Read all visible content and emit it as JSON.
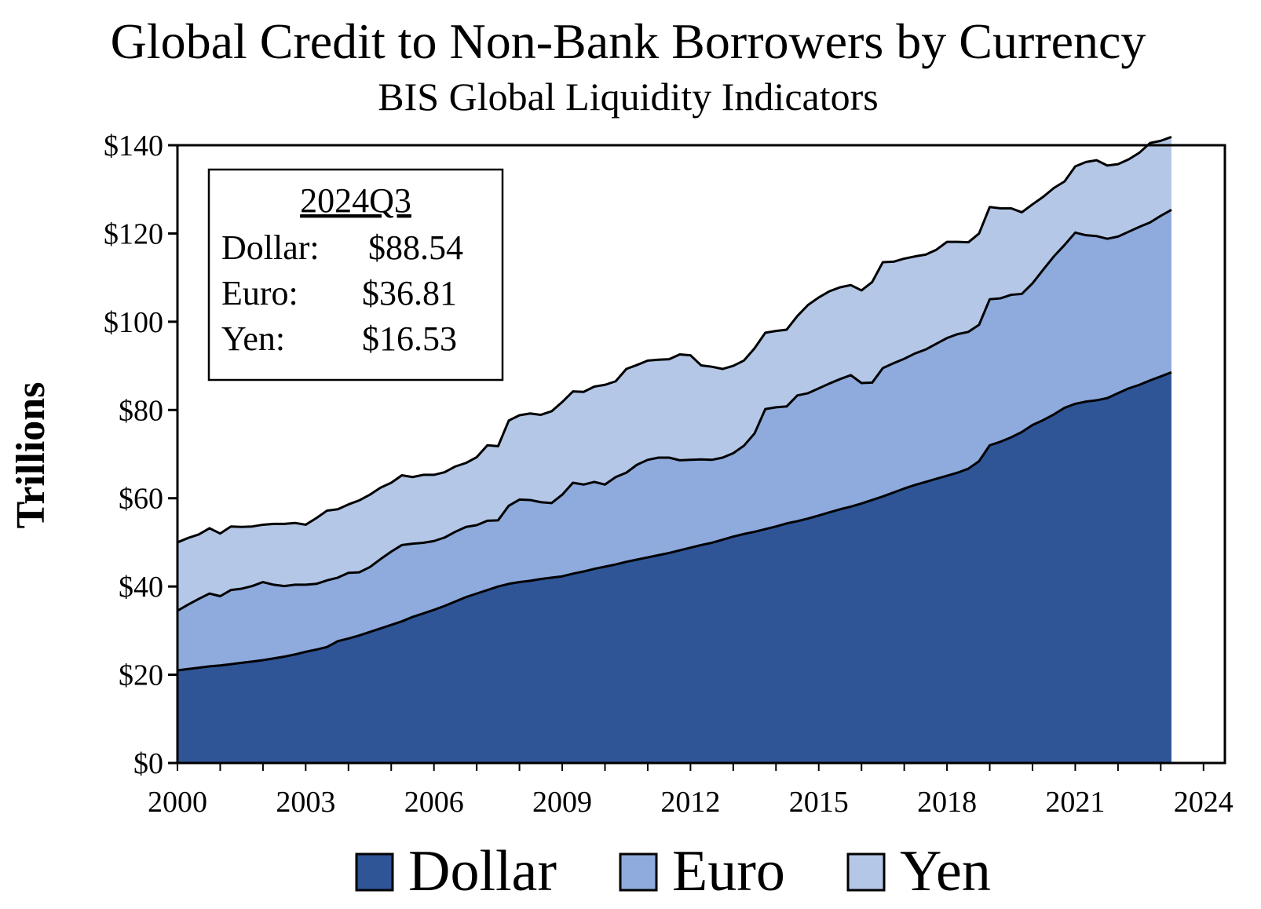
{
  "chart_data": {
    "type": "area",
    "stacked": true,
    "title": "Global Credit to Non-Bank Borrowers by Currency",
    "subtitle": "BIS Global Liquidity Indicators",
    "ylabel": "Trillions",
    "xlabel": "",
    "x_start": 2000.0,
    "x_step": 0.25,
    "xlim": [
      2000,
      2024.5
    ],
    "ylim": [
      0,
      140
    ],
    "x_ticks": [
      "2000",
      "2003",
      "2006",
      "2009",
      "2012",
      "2015",
      "2018",
      "2021",
      "2024"
    ],
    "y_ticks": [
      "$0",
      "$20",
      "$40",
      "$60",
      "$80",
      "$100",
      "$120",
      "$140"
    ],
    "series": [
      {
        "name": "Dollar",
        "color": "#2f5597",
        "values": [
          21.0,
          21.3,
          21.6,
          21.9,
          22.1,
          22.4,
          22.7,
          23.0,
          23.3,
          23.7,
          24.1,
          24.6,
          25.2,
          25.7,
          26.3,
          27.6,
          28.2,
          28.9,
          29.7,
          30.5,
          31.3,
          32.1,
          33.1,
          33.9,
          34.7,
          35.6,
          36.6,
          37.6,
          38.4,
          39.2,
          40.0,
          40.6,
          41.0,
          41.3,
          41.7,
          42.0,
          42.3,
          42.9,
          43.4,
          44.0,
          44.5,
          45.0,
          45.6,
          46.1,
          46.6,
          47.1,
          47.6,
          48.2,
          48.8,
          49.4,
          49.9,
          50.6,
          51.3,
          51.9,
          52.4,
          53.0,
          53.6,
          54.3,
          54.8,
          55.4,
          56.1,
          56.8,
          57.5,
          58.1,
          58.8,
          59.6,
          60.4,
          61.3,
          62.2,
          63.0,
          63.7,
          64.4,
          65.1,
          65.8,
          66.7,
          68.4,
          72.0,
          72.8,
          73.8,
          75.0,
          76.6,
          77.7,
          79.0,
          80.5,
          81.4,
          81.9,
          82.2,
          82.7,
          83.8,
          84.9,
          85.7,
          86.7,
          87.6,
          88.54
        ]
      },
      {
        "name": "Euro",
        "color": "#8faadc",
        "values": [
          13.5,
          14.6,
          15.6,
          16.5,
          15.7,
          16.8,
          16.8,
          17.1,
          17.7,
          16.7,
          16.0,
          15.8,
          15.2,
          14.9,
          15.1,
          14.4,
          14.9,
          14.3,
          14.7,
          15.7,
          16.6,
          17.3,
          16.6,
          16.0,
          15.6,
          15.5,
          15.8,
          15.9,
          15.5,
          15.7,
          15.0,
          17.7,
          18.7,
          18.3,
          17.4,
          16.9,
          18.5,
          20.6,
          19.7,
          19.7,
          18.6,
          19.8,
          20.2,
          21.5,
          22.1,
          22.1,
          21.6,
          20.4,
          19.9,
          19.4,
          18.8,
          18.6,
          18.9,
          20.0,
          22.3,
          27.2,
          27.0,
          26.5,
          28.5,
          28.4,
          28.8,
          29.2,
          29.5,
          29.8,
          27.3,
          26.6,
          29.1,
          29.3,
          29.4,
          29.8,
          30.0,
          30.6,
          31.2,
          31.4,
          31.0,
          30.9,
          33.1,
          32.5,
          32.3,
          31.3,
          32.1,
          34.1,
          35.8,
          36.9,
          38.8,
          37.7,
          37.2,
          36.1,
          35.5,
          35.5,
          35.8,
          35.8,
          36.4,
          36.81
        ]
      },
      {
        "name": "Yen",
        "color": "#b4c7e7",
        "values": [
          15.5,
          15.1,
          14.6,
          14.8,
          14.2,
          14.4,
          14.0,
          13.5,
          13.0,
          13.8,
          14.1,
          14.0,
          13.6,
          14.9,
          15.8,
          15.5,
          15.5,
          16.3,
          16.4,
          16.2,
          15.6,
          15.8,
          15.1,
          15.4,
          15.0,
          14.8,
          14.8,
          14.5,
          15.4,
          17.1,
          16.8,
          19.3,
          19.1,
          19.6,
          19.8,
          20.8,
          21.0,
          20.7,
          21.0,
          21.6,
          22.6,
          21.7,
          23.5,
          22.6,
          22.5,
          22.2,
          22.3,
          24.0,
          23.7,
          21.3,
          21.1,
          20.1,
          19.8,
          19.3,
          19.3,
          17.3,
          17.3,
          17.4,
          18.0,
          20.0,
          20.6,
          20.9,
          20.8,
          20.4,
          21.0,
          22.8,
          24.0,
          23.0,
          22.7,
          22.0,
          21.5,
          21.3,
          21.8,
          20.9,
          20.3,
          20.7,
          20.9,
          20.4,
          19.6,
          18.5,
          17.9,
          16.5,
          15.5,
          14.4,
          15.0,
          16.6,
          17.2,
          16.6,
          16.4,
          16.4,
          16.8,
          18.0,
          17.0,
          16.53
        ]
      }
    ],
    "legend_position": "bottom",
    "grid": false,
    "annotation": {
      "heading": "2024Q3",
      "lines": [
        {
          "label": "Dollar:",
          "value": "$88.54"
        },
        {
          "label": "Euro:",
          "value": "$36.81"
        },
        {
          "label": "Yen:",
          "value": "$16.53"
        }
      ]
    }
  }
}
